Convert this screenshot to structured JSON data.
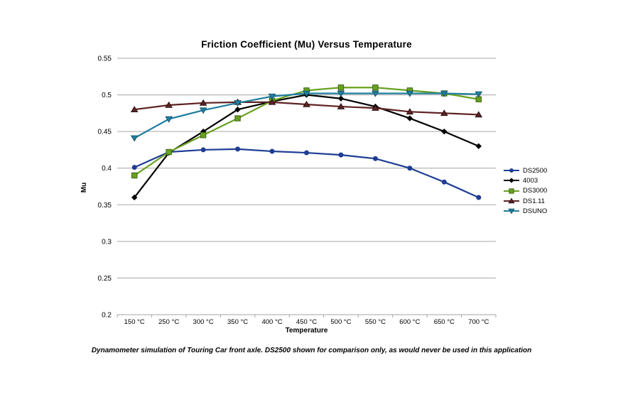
{
  "chart_data": {
    "type": "line",
    "title": "Friction Coefficient (Mu) Versus Temperature",
    "xlabel": "Temperature",
    "ylabel": "Mu",
    "ylim": [
      0.2,
      0.55
    ],
    "ytick_step": 0.05,
    "grid": true,
    "legend_position": "right",
    "gridline_color": "#A6A6A6",
    "categories": [
      "150 °C",
      "250 °C",
      "300 °C",
      "350 °C",
      "400 °C",
      "450 °C",
      "500 °C",
      "550 °C",
      "600 °C",
      "650 °C",
      "700 °C"
    ],
    "series": [
      {
        "name": "DS2500",
        "marker": "circle",
        "color": "#1E3D94",
        "edge": "#16307A",
        "values": [
          0.401,
          0.422,
          0.425,
          0.426,
          0.423,
          0.421,
          0.418,
          0.413,
          0.4,
          0.381,
          0.36
        ]
      },
      {
        "name": "4003",
        "marker": "diamond",
        "color": "#000000",
        "edge": "#000000",
        "values": [
          0.36,
          0.421,
          0.45,
          0.48,
          0.491,
          0.5,
          0.495,
          0.484,
          0.468,
          0.45,
          0.43
        ]
      },
      {
        "name": "DS3000",
        "marker": "square",
        "color": "#69A121",
        "edge": "#3E6614",
        "values": [
          0.39,
          0.422,
          0.445,
          0.468,
          0.492,
          0.506,
          0.51,
          0.51,
          0.506,
          0.502,
          0.494
        ]
      },
      {
        "name": "DS1.11",
        "marker": "triangle-up",
        "color": "#5E2223",
        "edge": "#1E0B0B",
        "values": [
          0.48,
          0.486,
          0.489,
          0.49,
          0.49,
          0.487,
          0.484,
          0.482,
          0.477,
          0.475,
          0.473
        ]
      },
      {
        "name": "DSUNO",
        "marker": "triangle-down",
        "color": "#1F7E9E",
        "edge": "#0F4F66",
        "values": [
          0.441,
          0.467,
          0.479,
          0.489,
          0.498,
          0.502,
          0.502,
          0.502,
          0.502,
          0.502,
          0.501
        ]
      }
    ]
  },
  "footnote": "Dynamometer simulation of Touring Car front axle. DS2500 shown for comparison only, as would never be used in this application"
}
